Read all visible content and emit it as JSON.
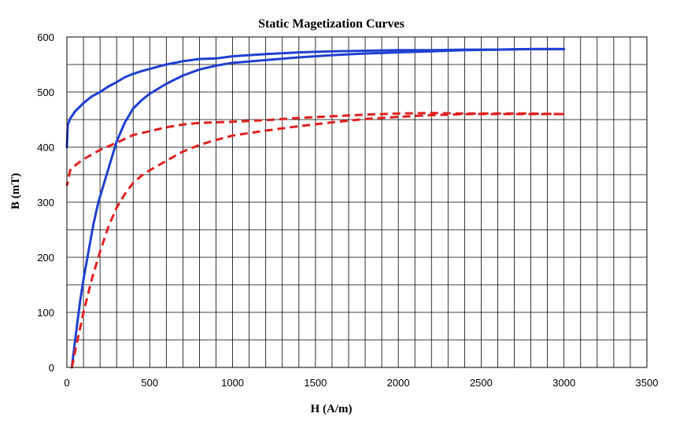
{
  "chart_data": {
    "type": "line",
    "title": "Static Magetization Curves",
    "xlabel": "H (A/m)",
    "ylabel": "B (mT)",
    "xlim": [
      0,
      3500
    ],
    "ylim": [
      0,
      600
    ],
    "x_ticks": [
      0,
      500,
      1000,
      1500,
      2000,
      2500,
      3000,
      3500
    ],
    "y_ticks": [
      0,
      100,
      200,
      300,
      400,
      500,
      600
    ],
    "x_minor_step": 100,
    "y_minor_step": 50,
    "grid": true,
    "legend": "none",
    "series": [
      {
        "color": "#2040d0",
        "dash": "solid",
        "x": [
          30,
          50,
          80,
          100,
          130,
          160,
          190,
          220,
          260,
          300,
          350,
          400,
          450,
          500,
          600,
          700,
          800,
          900,
          1000,
          1200,
          1400,
          1600,
          1800,
          2000,
          2200,
          2400,
          2600,
          2800,
          3000
        ],
        "y": [
          0,
          50,
          120,
          160,
          210,
          260,
          300,
          330,
          370,
          410,
          445,
          470,
          485,
          497,
          515,
          530,
          541,
          548,
          553,
          558,
          563,
          567,
          570,
          572,
          574,
          576,
          577,
          578,
          578
        ]
      },
      {
        "color": "#2040d0",
        "dash": "solid",
        "x": [
          3000,
          2800,
          2600,
          2400,
          2200,
          2000,
          1800,
          1600,
          1400,
          1200,
          1000,
          900,
          800,
          700,
          600,
          500,
          450,
          400,
          350,
          300,
          250,
          200,
          150,
          100,
          50,
          20,
          5,
          0
        ],
        "y": [
          578,
          578,
          577,
          577,
          576,
          576,
          575,
          574,
          572,
          569,
          565,
          561,
          560,
          556,
          550,
          542,
          538,
          533,
          527,
          518,
          510,
          500,
          492,
          480,
          465,
          452,
          440,
          400
        ]
      },
      {
        "color": "#e02020",
        "dash": "dashed",
        "x": [
          30,
          50,
          100,
          150,
          200,
          250,
          300,
          350,
          400,
          450,
          500,
          600,
          700,
          800,
          900,
          1000,
          1200,
          1400,
          1600,
          1800,
          2000,
          2200,
          2400,
          2600,
          2800,
          3000
        ],
        "y": [
          0,
          30,
          100,
          160,
          210,
          255,
          290,
          315,
          335,
          348,
          358,
          375,
          392,
          404,
          413,
          421,
          430,
          438,
          445,
          451,
          455,
          458,
          460,
          460,
          460,
          460
        ]
      },
      {
        "color": "#e02020",
        "dash": "dashed",
        "x": [
          3000,
          2800,
          2600,
          2400,
          2200,
          2000,
          1800,
          1600,
          1400,
          1200,
          1000,
          900,
          800,
          700,
          600,
          500,
          400,
          300,
          200,
          100,
          50,
          20,
          0
        ],
        "y": [
          460,
          461,
          461,
          461,
          462,
          461,
          459,
          456,
          453,
          449,
          446,
          445,
          444,
          441,
          436,
          429,
          422,
          408,
          395,
          378,
          367,
          358,
          330
        ]
      }
    ]
  }
}
